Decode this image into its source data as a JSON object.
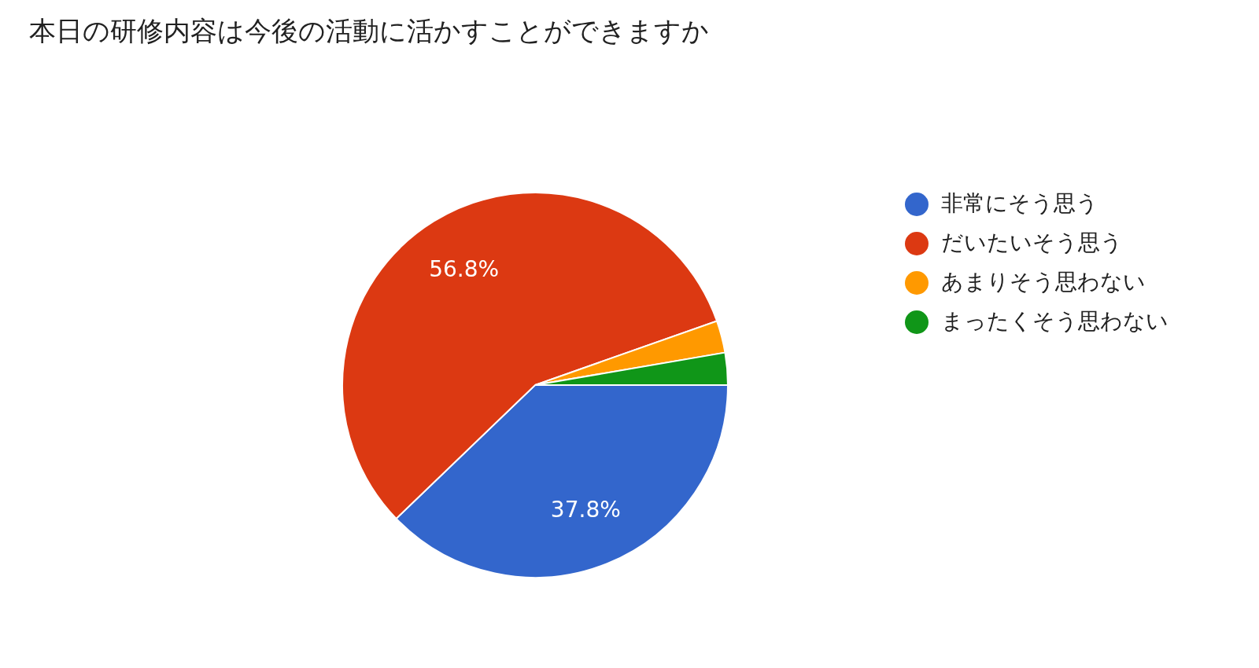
{
  "chart_data": {
    "type": "pie",
    "title": "本日の研修内容は今後の活動に活かすことができますか",
    "categories": [
      "非常にそう思う",
      "だいたいそう思う",
      "あまりそう思わない",
      "まったくそう思わない"
    ],
    "values": [
      37.8,
      56.8,
      2.7,
      2.7
    ],
    "value_labels": [
      "37.8%",
      "56.8%",
      null,
      null
    ],
    "colors": [
      "#3366cc",
      "#dc3912",
      "#ff9900",
      "#109618"
    ],
    "legend": "right"
  }
}
